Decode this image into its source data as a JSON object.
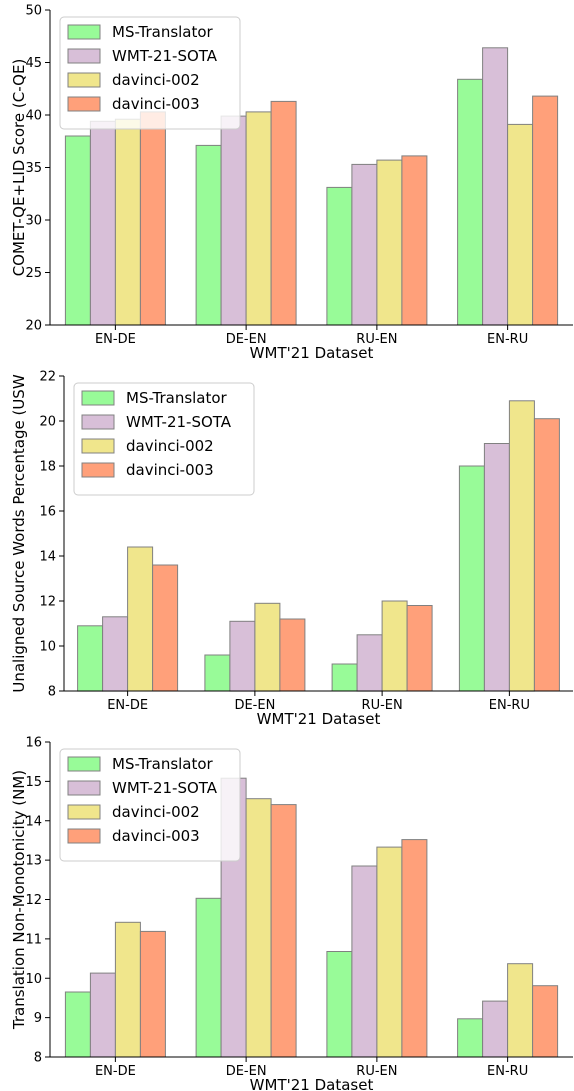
{
  "chart_data": [
    {
      "type": "bar",
      "categories": [
        "EN-DE",
        "DE-EN",
        "RU-EN",
        "EN-RU"
      ],
      "series": [
        {
          "name": "MS-Translator",
          "values": [
            38.0,
            37.1,
            33.1,
            43.4
          ]
        },
        {
          "name": "WMT-21-SOTA",
          "values": [
            39.4,
            39.9,
            35.3,
            46.4
          ]
        },
        {
          "name": "davinci-002",
          "values": [
            39.6,
            40.3,
            35.7,
            39.1
          ]
        },
        {
          "name": "davinci-003",
          "values": [
            40.3,
            41.3,
            36.1,
            41.8
          ]
        }
      ],
      "xlabel": "WMT'21 Dataset",
      "ylabel": "COMET-QE+LID Score (C-QE)",
      "ylim": [
        20,
        50
      ],
      "yticks": [
        20,
        25,
        30,
        35,
        40,
        45,
        50
      ],
      "legend": "top-left"
    },
    {
      "type": "bar",
      "categories": [
        "EN-DE",
        "DE-EN",
        "RU-EN",
        "EN-RU"
      ],
      "series": [
        {
          "name": "MS-Translator",
          "values": [
            10.9,
            9.6,
            9.2,
            18.0
          ]
        },
        {
          "name": "WMT-21-SOTA",
          "values": [
            11.3,
            11.1,
            10.5,
            19.0
          ]
        },
        {
          "name": "davinci-002",
          "values": [
            14.4,
            11.9,
            12.0,
            20.9
          ]
        },
        {
          "name": "davinci-003",
          "values": [
            13.6,
            11.2,
            11.8,
            20.1
          ]
        }
      ],
      "xlabel": "WMT'21 Dataset",
      "ylabel": "Unaligned Source Words Percentage (USW",
      "ylim": [
        8,
        22
      ],
      "yticks": [
        8,
        10,
        12,
        14,
        16,
        18,
        20,
        22
      ],
      "legend": "top-left"
    },
    {
      "type": "bar",
      "categories": [
        "EN-DE",
        "DE-EN",
        "RU-EN",
        "EN-RU"
      ],
      "series": [
        {
          "name": "MS-Translator",
          "values": [
            9.65,
            12.03,
            10.68,
            8.97
          ]
        },
        {
          "name": "WMT-21-SOTA",
          "values": [
            10.13,
            15.08,
            12.85,
            9.42
          ]
        },
        {
          "name": "davinci-002",
          "values": [
            11.42,
            14.56,
            13.33,
            10.37
          ]
        },
        {
          "name": "davinci-003",
          "values": [
            11.19,
            14.41,
            13.52,
            9.81
          ]
        }
      ],
      "xlabel": "WMT'21 Dataset",
      "ylabel": "Translation Non-Monotonicity (NM)",
      "ylim": [
        8,
        16
      ],
      "yticks": [
        8,
        9,
        10,
        11,
        12,
        13,
        14,
        15,
        16
      ],
      "legend": "top-left"
    }
  ],
  "colors": {
    "MS-Translator": "#98fb98",
    "WMT-21-SOTA": "#d8bfd8",
    "davinci-002": "#f0e68c",
    "davinci-003": "#ffa07a",
    "edge": "#808080"
  }
}
